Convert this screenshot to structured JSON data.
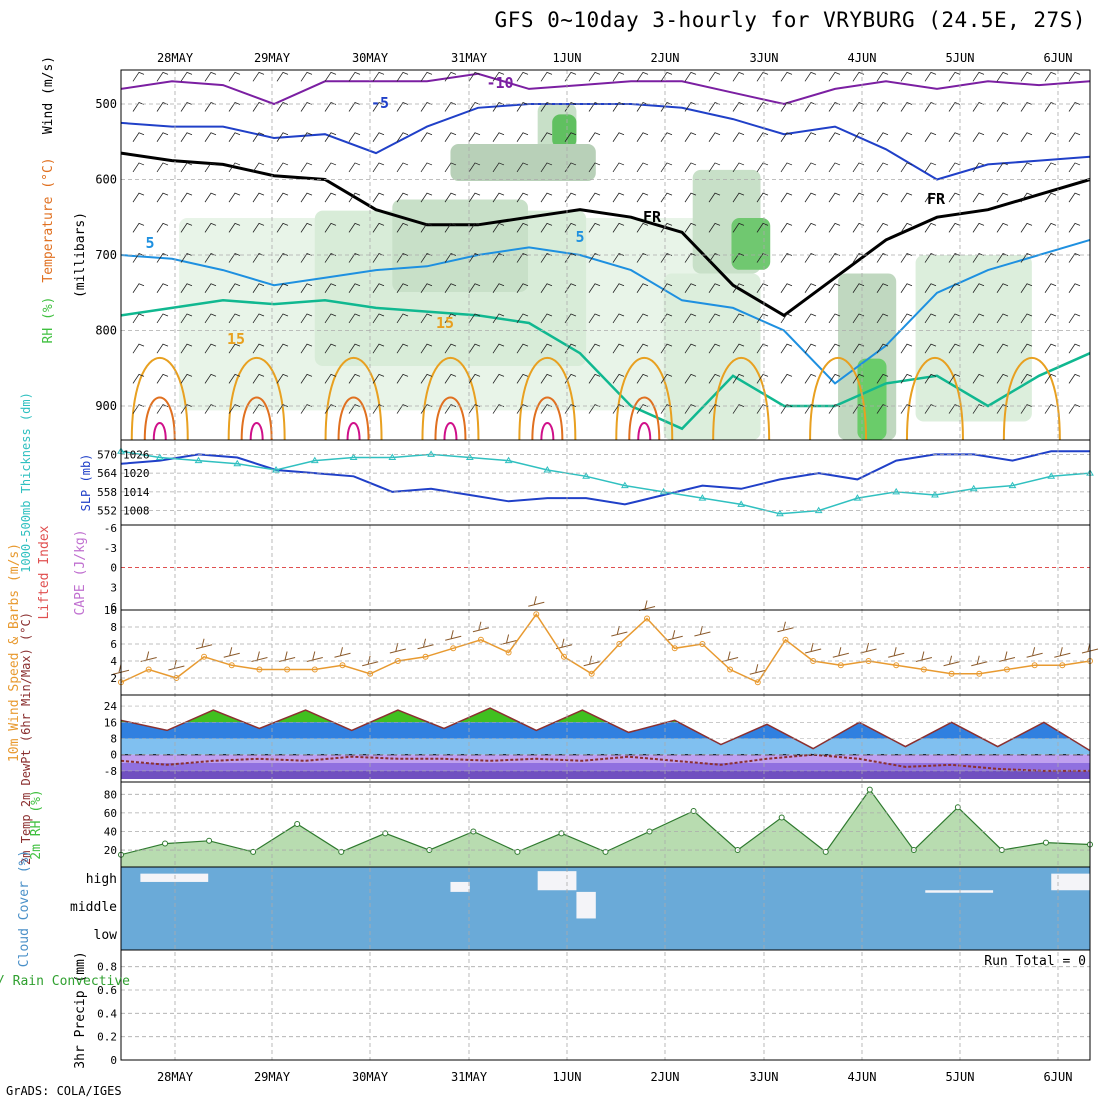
{
  "title": "GFS 0~10day 3-hourly for VRYBURG (24.5E, 27S)",
  "credit": "GrADS: COLA/IGES",
  "colors": {
    "purple": "#7b1fa2",
    "blue": "#2040c8",
    "lightblue": "#1e90e0",
    "teal": "#10b890",
    "orange": "#e8a020",
    "darkorange": "#e07020",
    "magenta": "#d0108a",
    "black": "#000000",
    "gridline": "#aaaaaa",
    "cyan": "#30c0c0",
    "brownbarb": "#8b5a2b",
    "orange_line": "#e89a30",
    "cloud": "#6aaad8",
    "rh_green": "#40c040"
  },
  "chart_data": [
    {
      "type": "heatmap",
      "name": "upper-air cross-section",
      "x_ticks": [
        "28MAY",
        "29MAY",
        "30MAY",
        "31MAY",
        "1JUN",
        "2JUN",
        "3JUN",
        "4JUN",
        "5JUN",
        "6JUN"
      ],
      "y_ticks": [
        500,
        600,
        700,
        800,
        900
      ],
      "ylabel_parts": [
        "Wind (m/s)",
        "Temperature (°C)",
        "RH (%)"
      ],
      "ylabel_units": "(millibars)",
      "contour_labels": [
        "-10",
        "-5",
        "5",
        "5",
        "15",
        "15",
        "FR",
        "FR"
      ],
      "isotherm_levels_mb": {
        "-10": [
          480,
          470,
          475,
          500,
          470,
          470,
          470,
          460,
          480,
          475,
          470,
          470,
          485,
          500,
          480,
          470,
          480,
          470,
          475,
          470
        ],
        "-5": [
          525,
          530,
          530,
          545,
          540,
          565,
          530,
          505,
          500,
          500,
          500,
          505,
          520,
          540,
          530,
          560,
          600,
          580,
          575,
          570
        ],
        "0": [
          565,
          575,
          580,
          595,
          600,
          640,
          660,
          660,
          650,
          640,
          650,
          670,
          740,
          780,
          730,
          680,
          650,
          640,
          620,
          600
        ],
        "5": [
          700,
          705,
          720,
          740,
          730,
          720,
          715,
          700,
          690,
          700,
          720,
          760,
          770,
          800,
          870,
          820,
          750,
          720,
          700,
          680
        ],
        "10": [
          780,
          770,
          760,
          765,
          760,
          770,
          775,
          780,
          790,
          830,
          900,
          930,
          860,
          900,
          900,
          870,
          860,
          900,
          860,
          830
        ]
      }
    },
    {
      "type": "line",
      "name": "thickness / SLP",
      "ylabel": "1000-500mb Thickness (dm)",
      "ylabel2": "SLP (mb)",
      "y_ticks_left": [
        552,
        558,
        564,
        570
      ],
      "y_ticks_right": [
        1008,
        1014,
        1020,
        1026
      ],
      "series": [
        {
          "name": "SLP (mb)",
          "axis": "right",
          "values": [
            1023,
            1024,
            1026,
            1025,
            1021,
            1020,
            1019,
            1014,
            1015,
            1013,
            1011,
            1012,
            1012,
            1010,
            1013,
            1016,
            1015,
            1018,
            1020,
            1018,
            1024,
            1026,
            1026,
            1024,
            1027,
            1027
          ]
        },
        {
          "name": "1000-500mb Thickness (dm)",
          "axis": "left",
          "values": [
            571,
            569,
            568,
            567,
            565,
            568,
            569,
            569,
            570,
            569,
            568,
            565,
            563,
            560,
            558,
            556,
            554,
            551,
            552,
            556,
            558,
            557,
            559,
            560,
            563,
            564
          ]
        }
      ]
    },
    {
      "type": "line",
      "name": "lifted index / CAPE",
      "ylabel": "Lifted Index",
      "ylabel2": "CAPE (J/kg)",
      "y_ticks": [
        "-6",
        "-3",
        "0",
        "3",
        "6"
      ],
      "series": [
        {
          "name": "CAPE",
          "values": [
            0
          ]
        }
      ]
    },
    {
      "type": "line",
      "name": "10m wind",
      "ylabel": "10m Wind Speed & Barbs (m/s)",
      "y_ticks": [
        2,
        4,
        6,
        8,
        10
      ],
      "series": [
        {
          "name": "10m Wind Speed",
          "values": [
            1.5,
            3,
            2,
            4.5,
            3.5,
            3,
            3,
            3,
            3.5,
            2.5,
            4,
            4.5,
            5.5,
            6.5,
            5,
            9.5,
            4.5,
            2.5,
            6,
            9,
            5.5,
            6,
            3,
            1.5,
            6.5,
            4,
            3.5,
            4,
            3.5,
            3,
            2.5,
            2.5,
            3,
            3.5,
            3.5,
            4
          ]
        }
      ]
    },
    {
      "type": "area",
      "name": "2m temperature / dewpoint",
      "ylabel": "2m Temp 2m DewPt (6hr Min/Max) (°C)",
      "y_ticks": [
        -8,
        0,
        8,
        16,
        24
      ],
      "series": [
        {
          "name": "2m Temp",
          "values": [
            17,
            12,
            22,
            13,
            22,
            12,
            22,
            13,
            23,
            12,
            22,
            11,
            17,
            5,
            15,
            3,
            16,
            4,
            16,
            4,
            16,
            2
          ]
        },
        {
          "name": "2m DewPt",
          "values": [
            -3,
            -5,
            -3,
            -2,
            -3,
            -1,
            -2,
            -2,
            -3,
            -2,
            -3,
            -1,
            -3,
            -5,
            -2,
            0,
            -2,
            -6,
            -5,
            -7,
            -8,
            -8
          ]
        }
      ]
    },
    {
      "type": "area",
      "name": "2m RH",
      "ylabel": "2m RH (%)",
      "y_ticks": [
        20,
        40,
        60,
        80
      ],
      "series": [
        {
          "name": "2m RH",
          "values": [
            15,
            27,
            30,
            18,
            48,
            18,
            38,
            20,
            40,
            18,
            38,
            18,
            40,
            62,
            20,
            55,
            18,
            85,
            20,
            66,
            20,
            28,
            26
          ]
        }
      ]
    },
    {
      "type": "heatmap",
      "name": "cloud cover",
      "ylabel": "Cloud Cover (%)",
      "rows": [
        "high",
        "middle",
        "low"
      ]
    },
    {
      "type": "bar",
      "name": "3hr precip",
      "ylabel": "3hr Precip (mm)",
      "ylabel2": "Total / Rain Convective",
      "y_ticks": [
        "0",
        "0.2",
        "0.4",
        "0.6",
        "0.8"
      ],
      "annotation": "Run Total = 0",
      "values": []
    }
  ]
}
